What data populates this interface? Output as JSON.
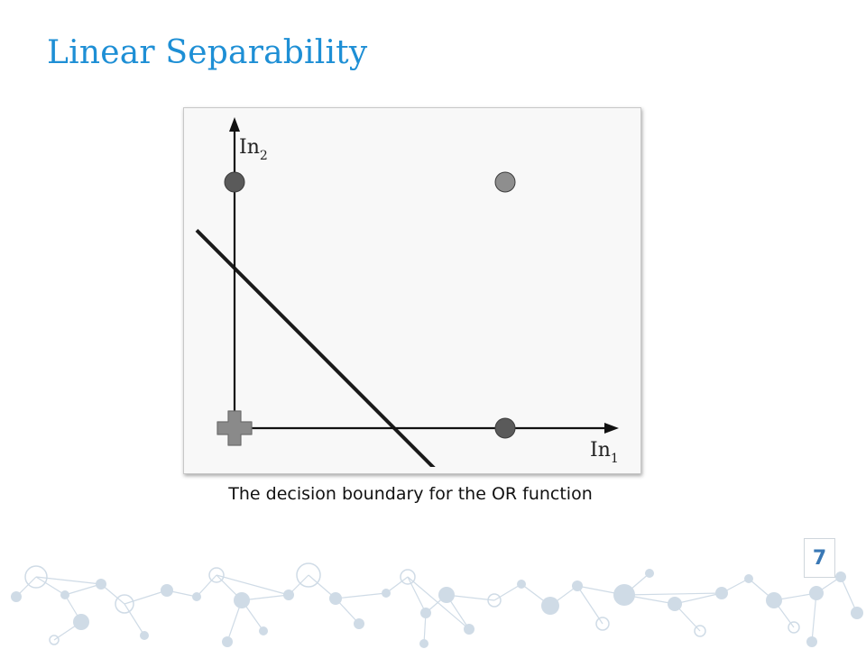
{
  "slide": {
    "title": "Linear Separability",
    "caption": "The decision boundary for the OR function",
    "page_number": "7"
  },
  "figure": {
    "x_axis_label": "In",
    "x_axis_subscript": "1",
    "y_axis_label": "In",
    "y_axis_subscript": "2",
    "points": [
      {
        "in1": 0,
        "in2": 0,
        "marker": "plus",
        "color": "#8a8a8a"
      },
      {
        "in1": 1,
        "in2": 0,
        "marker": "circle",
        "color": "#5a5a5a"
      },
      {
        "in1": 0,
        "in2": 1,
        "marker": "circle",
        "color": "#5a5a5a"
      },
      {
        "in1": 1,
        "in2": 1,
        "marker": "circle",
        "color": "#8e8e8e"
      }
    ],
    "decision_boundary": {
      "in1_intercept": 0.59,
      "in2_intercept": 0.65
    }
  },
  "colors": {
    "title": "#1e8fd5",
    "page_number": "#3a78b5",
    "decoration": "#cfdbe6"
  }
}
